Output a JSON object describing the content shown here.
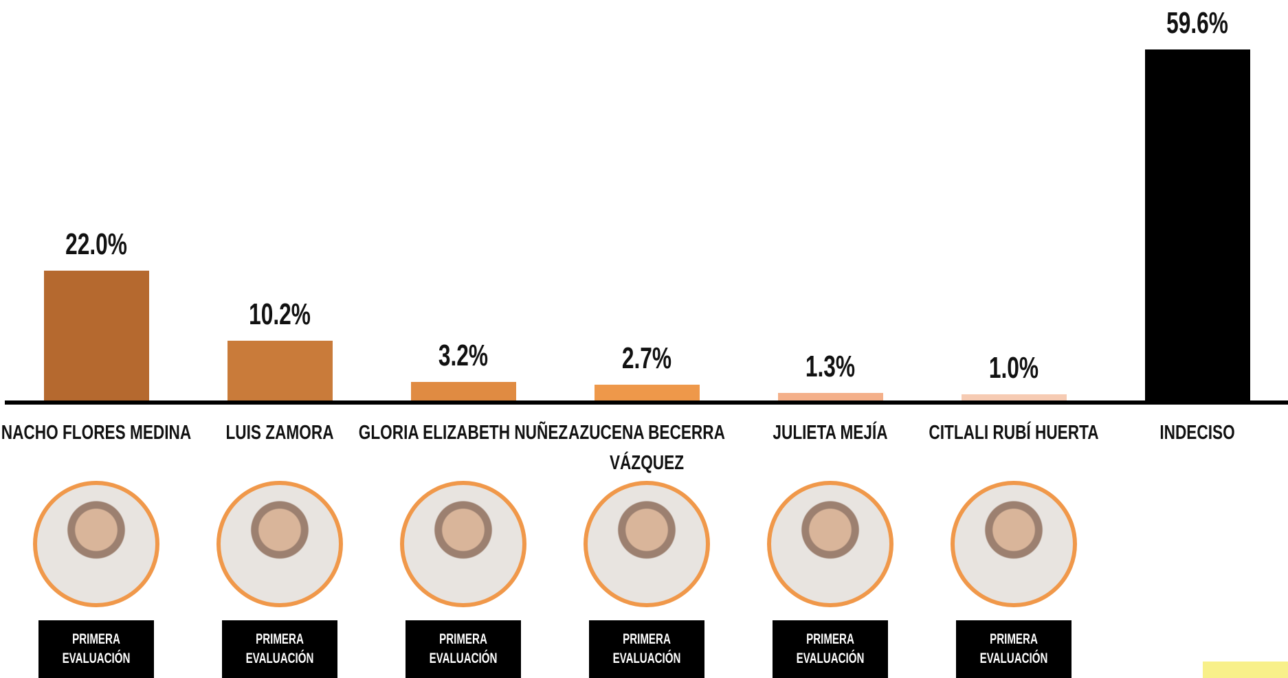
{
  "chart_data": {
    "type": "bar",
    "categories": [
      "NACHO FLORES MEDINA",
      "LUIS ZAMORA",
      "GLORIA ELIZABETH NUÑEZ",
      "AZUCENA BECERRA VÁZQUEZ",
      "JULIETA MEJÍA",
      "CITLALI RUBÍ HUERTA",
      "INDECISO"
    ],
    "values": [
      22.0,
      10.2,
      3.2,
      2.7,
      1.3,
      1.0,
      59.6
    ],
    "value_labels": [
      "22.0%",
      "10.2%",
      "3.2%",
      "2.7%",
      "1.3%",
      "1.0%",
      "59.6%"
    ],
    "colors": [
      "#b5692f",
      "#c97b3a",
      "#e08b42",
      "#ee984a",
      "#f4b08a",
      "#f6cbb3",
      "#000000"
    ]
  },
  "candidate_badges": [
    "PRIMERA EVALUACIÓN",
    "PRIMERA EVALUACIÓN",
    "PRIMERA EVALUACIÓN",
    "PRIMERA EVALUACIÓN",
    "PRIMERA EVALUACIÓN",
    "PRIMERA EVALUACIÓN"
  ]
}
